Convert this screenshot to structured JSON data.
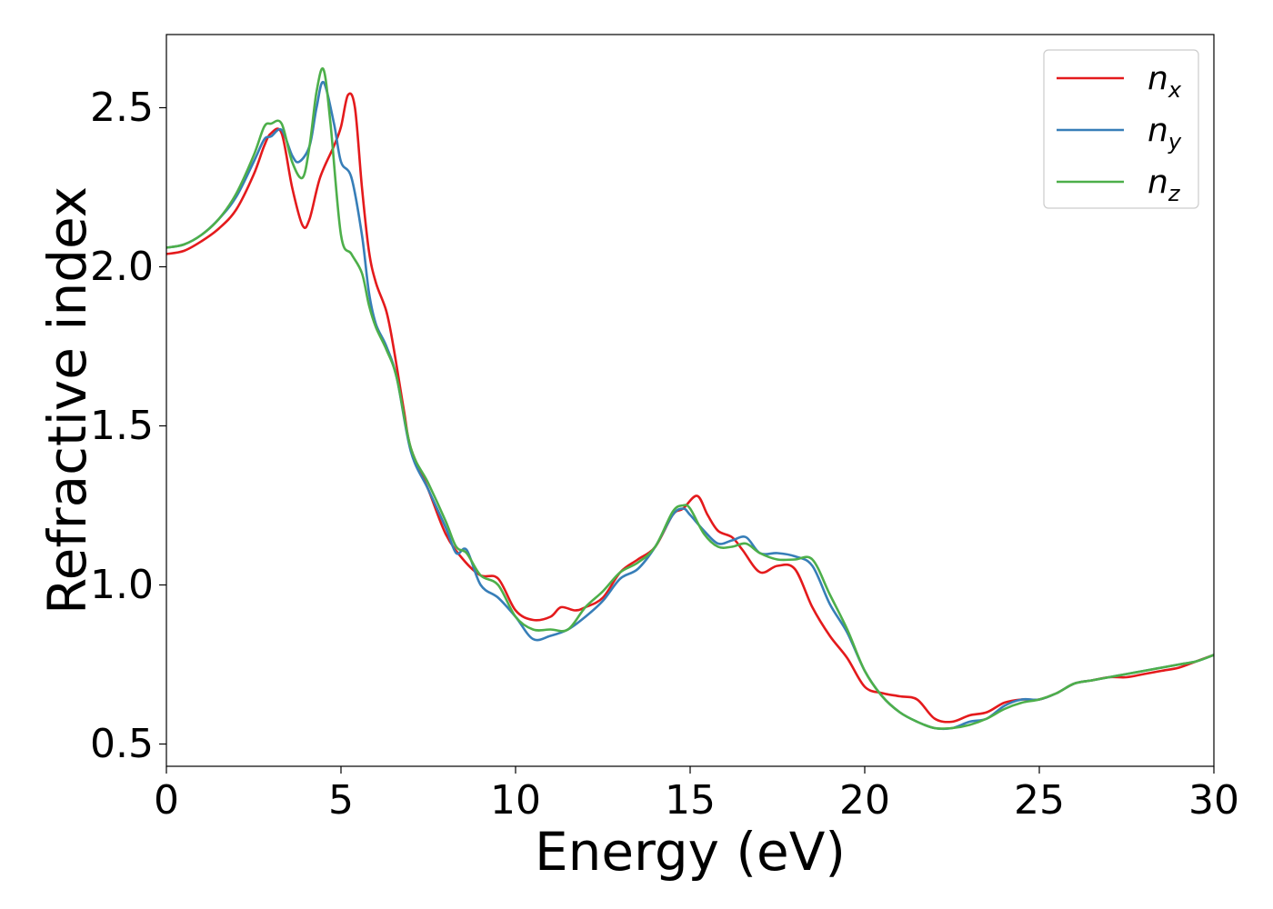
{
  "chart_data": {
    "type": "line",
    "title": "",
    "xlabel": "Energy (eV)",
    "ylabel": "Refractive index",
    "xlim": [
      0,
      30
    ],
    "ylim": [
      0.43,
      2.73
    ],
    "xticks": [
      0,
      5,
      10,
      15,
      20,
      25,
      30
    ],
    "xtick_labels": [
      "0",
      "5",
      "10",
      "15",
      "20",
      "25",
      "30"
    ],
    "yticks": [
      0.5,
      1.0,
      1.5,
      2.0,
      2.5
    ],
    "ytick_labels": [
      "0.5",
      "1.0",
      "1.5",
      "2.0",
      "2.5"
    ],
    "grid": false,
    "legend": "top-right",
    "series": [
      {
        "name": "n",
        "subscript": "x",
        "color": "#e41a1c",
        "x": [
          0,
          0.5,
          1,
          1.5,
          2,
          2.5,
          2.8,
          3.0,
          3.3,
          3.6,
          3.9,
          4.1,
          4.4,
          4.8,
          5.0,
          5.2,
          5.4,
          5.6,
          5.8,
          6.0,
          6.3,
          6.5,
          6.8,
          7.0,
          7.5,
          8.0,
          8.5,
          9.0,
          9.5,
          10.0,
          10.5,
          11.0,
          11.3,
          11.7,
          12.0,
          12.5,
          13.0,
          13.5,
          14.0,
          14.5,
          14.8,
          15.2,
          15.5,
          15.8,
          16.2,
          16.5,
          17.0,
          17.5,
          18.0,
          18.5,
          19.0,
          19.5,
          20.0,
          20.5,
          21.0,
          21.5,
          22.0,
          22.5,
          23.0,
          23.5,
          24.0,
          24.5,
          25.0,
          25.5,
          26.0,
          26.5,
          27.0,
          27.5,
          28.0,
          28.5,
          29.0,
          29.5,
          30.0
        ],
        "y": [
          2.04,
          2.05,
          2.08,
          2.12,
          2.18,
          2.29,
          2.38,
          2.42,
          2.42,
          2.25,
          2.13,
          2.15,
          2.28,
          2.38,
          2.44,
          2.54,
          2.5,
          2.25,
          2.05,
          1.95,
          1.86,
          1.75,
          1.55,
          1.43,
          1.3,
          1.16,
          1.08,
          1.03,
          1.02,
          0.92,
          0.89,
          0.9,
          0.93,
          0.92,
          0.93,
          0.96,
          1.04,
          1.08,
          1.12,
          1.22,
          1.24,
          1.28,
          1.22,
          1.17,
          1.15,
          1.11,
          1.04,
          1.06,
          1.05,
          0.93,
          0.84,
          0.77,
          0.68,
          0.66,
          0.65,
          0.64,
          0.58,
          0.57,
          0.59,
          0.6,
          0.63,
          0.64,
          0.64,
          0.66,
          0.69,
          0.7,
          0.71,
          0.71,
          0.72,
          0.73,
          0.74,
          0.76,
          0.78
        ]
      },
      {
        "name": "n",
        "subscript": "y",
        "color": "#377eb8",
        "x": [
          0,
          0.5,
          1,
          1.5,
          2,
          2.5,
          2.8,
          3.0,
          3.3,
          3.6,
          3.8,
          4.1,
          4.3,
          4.5,
          4.8,
          5.0,
          5.3,
          5.6,
          5.8,
          6.0,
          6.3,
          6.6,
          7.0,
          7.5,
          8.0,
          8.3,
          8.6,
          9.0,
          9.5,
          10.0,
          10.5,
          11.0,
          11.5,
          12.0,
          12.5,
          13.0,
          13.5,
          14.0,
          14.5,
          14.8,
          15.0,
          15.4,
          15.8,
          16.2,
          16.6,
          17.0,
          17.5,
          18.0,
          18.5,
          19.0,
          19.5,
          20.0,
          20.5,
          21.0,
          21.5,
          22.0,
          22.5,
          23.0,
          23.5,
          24.0,
          24.5,
          25.0,
          25.5,
          26.0,
          26.5,
          27.0,
          27.5,
          28.0,
          28.5,
          29.0,
          29.5,
          30.0
        ],
        "y": [
          2.06,
          2.07,
          2.1,
          2.15,
          2.22,
          2.33,
          2.4,
          2.41,
          2.43,
          2.35,
          2.33,
          2.38,
          2.5,
          2.58,
          2.45,
          2.33,
          2.28,
          2.1,
          1.92,
          1.82,
          1.75,
          1.65,
          1.42,
          1.3,
          1.18,
          1.1,
          1.11,
          1.0,
          0.96,
          0.9,
          0.83,
          0.84,
          0.86,
          0.9,
          0.95,
          1.02,
          1.05,
          1.12,
          1.22,
          1.24,
          1.22,
          1.17,
          1.13,
          1.14,
          1.15,
          1.1,
          1.1,
          1.09,
          1.06,
          0.94,
          0.85,
          0.73,
          0.65,
          0.6,
          0.57,
          0.55,
          0.55,
          0.57,
          0.58,
          0.62,
          0.64,
          0.64,
          0.66,
          0.69,
          0.7,
          0.71,
          0.72,
          0.73,
          0.74,
          0.75,
          0.76,
          0.78
        ]
      },
      {
        "name": "n",
        "subscript": "z",
        "color": "#4daf4a",
        "x": [
          0,
          0.5,
          1,
          1.5,
          2,
          2.5,
          2.8,
          3.0,
          3.3,
          3.6,
          3.9,
          4.1,
          4.3,
          4.5,
          4.7,
          5.0,
          5.3,
          5.6,
          5.8,
          6.0,
          6.3,
          6.6,
          7.0,
          7.5,
          8.0,
          8.3,
          8.6,
          9.0,
          9.5,
          10.0,
          10.5,
          11.0,
          11.5,
          12.0,
          12.5,
          13.0,
          13.5,
          14.0,
          14.5,
          14.8,
          15.0,
          15.4,
          15.8,
          16.2,
          16.6,
          17.0,
          17.5,
          18.0,
          18.5,
          19.0,
          19.5,
          20.0,
          20.5,
          21.0,
          21.5,
          22.0,
          22.5,
          23.0,
          23.5,
          24.0,
          24.5,
          25.0,
          25.5,
          26.0,
          26.5,
          27.0,
          27.5,
          28.0,
          28.5,
          29.0,
          29.5,
          30.0
        ],
        "y": [
          2.06,
          2.07,
          2.1,
          2.15,
          2.23,
          2.35,
          2.44,
          2.45,
          2.45,
          2.33,
          2.28,
          2.38,
          2.55,
          2.62,
          2.45,
          2.1,
          2.04,
          1.98,
          1.88,
          1.81,
          1.74,
          1.65,
          1.43,
          1.32,
          1.2,
          1.12,
          1.1,
          1.03,
          1.0,
          0.9,
          0.86,
          0.86,
          0.86,
          0.93,
          0.98,
          1.04,
          1.07,
          1.12,
          1.23,
          1.25,
          1.24,
          1.16,
          1.12,
          1.12,
          1.13,
          1.1,
          1.08,
          1.08,
          1.08,
          0.97,
          0.86,
          0.73,
          0.65,
          0.6,
          0.57,
          0.55,
          0.55,
          0.56,
          0.58,
          0.61,
          0.63,
          0.64,
          0.66,
          0.69,
          0.7,
          0.71,
          0.72,
          0.73,
          0.74,
          0.75,
          0.76,
          0.78
        ]
      }
    ]
  }
}
